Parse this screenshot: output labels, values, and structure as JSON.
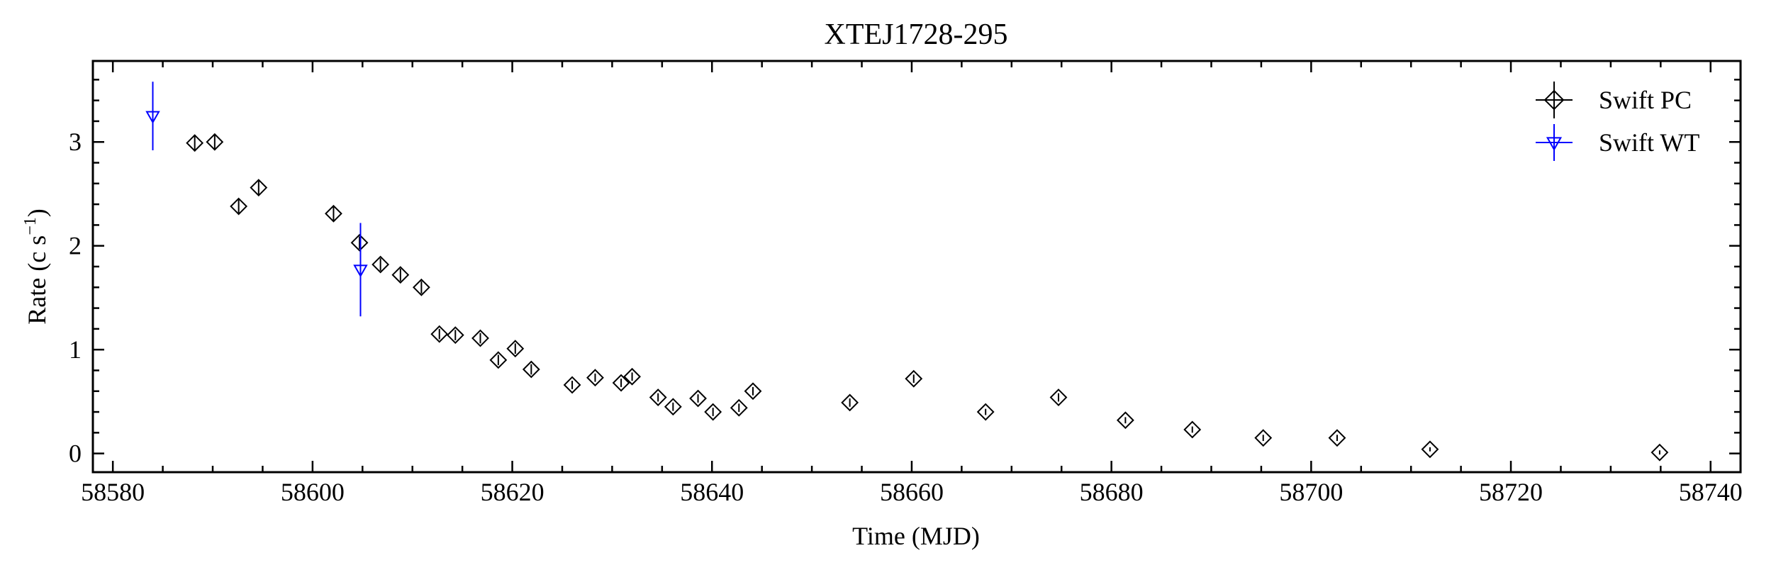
{
  "chart_data": {
    "type": "scatter",
    "title": "XTEJ1728-295",
    "xlabel": "Time (MJD)",
    "ylabel": {
      "prefix": "Rate (c s",
      "sup": "−1",
      "suffix": ")"
    },
    "xlim": [
      58578,
      58743
    ],
    "ylim": [
      -0.18,
      3.78
    ],
    "xticks": [
      58580,
      58600,
      58620,
      58640,
      58660,
      58680,
      58700,
      58720,
      58740
    ],
    "xtick_labels": [
      "58580",
      "58600",
      "58620",
      "58640",
      "58660",
      "58680",
      "58700",
      "58720",
      "58740"
    ],
    "yticks": [
      0,
      1,
      2,
      3
    ],
    "ytick_labels": [
      "0",
      "1",
      "2",
      "3"
    ],
    "legend_position": "top-right",
    "series": [
      {
        "name": "Swift PC",
        "color": "#000000",
        "marker": "diamond",
        "points": [
          {
            "x": 58588.2,
            "y": 2.99,
            "err": 0.08
          },
          {
            "x": 58590.2,
            "y": 3.0,
            "err": 0.08
          },
          {
            "x": 58592.6,
            "y": 2.38,
            "err": 0.07
          },
          {
            "x": 58594.6,
            "y": 2.56,
            "err": 0.07
          },
          {
            "x": 58602.1,
            "y": 2.31,
            "err": 0.07
          },
          {
            "x": 58604.7,
            "y": 2.03,
            "err": 0.06
          },
          {
            "x": 58606.8,
            "y": 1.82,
            "err": 0.06
          },
          {
            "x": 58608.8,
            "y": 1.72,
            "err": 0.06
          },
          {
            "x": 58610.9,
            "y": 1.6,
            "err": 0.06
          },
          {
            "x": 58612.7,
            "y": 1.15,
            "err": 0.05
          },
          {
            "x": 58614.3,
            "y": 1.14,
            "err": 0.05
          },
          {
            "x": 58616.8,
            "y": 1.11,
            "err": 0.05
          },
          {
            "x": 58618.6,
            "y": 0.9,
            "err": 0.05
          },
          {
            "x": 58620.3,
            "y": 1.01,
            "err": 0.05
          },
          {
            "x": 58621.9,
            "y": 0.81,
            "err": 0.05
          },
          {
            "x": 58626.0,
            "y": 0.66,
            "err": 0.04
          },
          {
            "x": 58628.3,
            "y": 0.73,
            "err": 0.04
          },
          {
            "x": 58630.9,
            "y": 0.68,
            "err": 0.04
          },
          {
            "x": 58632.0,
            "y": 0.74,
            "err": 0.04
          },
          {
            "x": 58634.6,
            "y": 0.54,
            "err": 0.04
          },
          {
            "x": 58636.1,
            "y": 0.45,
            "err": 0.04
          },
          {
            "x": 58638.6,
            "y": 0.53,
            "err": 0.04
          },
          {
            "x": 58640.1,
            "y": 0.4,
            "err": 0.04
          },
          {
            "x": 58642.7,
            "y": 0.44,
            "err": 0.04
          },
          {
            "x": 58644.1,
            "y": 0.6,
            "err": 0.04
          },
          {
            "x": 58653.8,
            "y": 0.49,
            "err": 0.04
          },
          {
            "x": 58660.2,
            "y": 0.72,
            "err": 0.04
          },
          {
            "x": 58667.4,
            "y": 0.4,
            "err": 0.03
          },
          {
            "x": 58674.7,
            "y": 0.54,
            "err": 0.04
          },
          {
            "x": 58681.4,
            "y": 0.32,
            "err": 0.03
          },
          {
            "x": 58688.1,
            "y": 0.23,
            "err": 0.03
          },
          {
            "x": 58695.2,
            "y": 0.15,
            "err": 0.03
          },
          {
            "x": 58702.6,
            "y": 0.15,
            "err": 0.03
          },
          {
            "x": 58711.9,
            "y": 0.04,
            "err": 0.02
          },
          {
            "x": 58734.9,
            "y": 0.01,
            "err": 0.02
          }
        ]
      },
      {
        "name": "Swift WT",
        "color": "#0000ff",
        "marker": "triangle-down",
        "points": [
          {
            "x": 58584.0,
            "y": 3.25,
            "err": 0.33
          },
          {
            "x": 58604.8,
            "y": 1.77,
            "err": 0.45
          }
        ]
      }
    ]
  }
}
